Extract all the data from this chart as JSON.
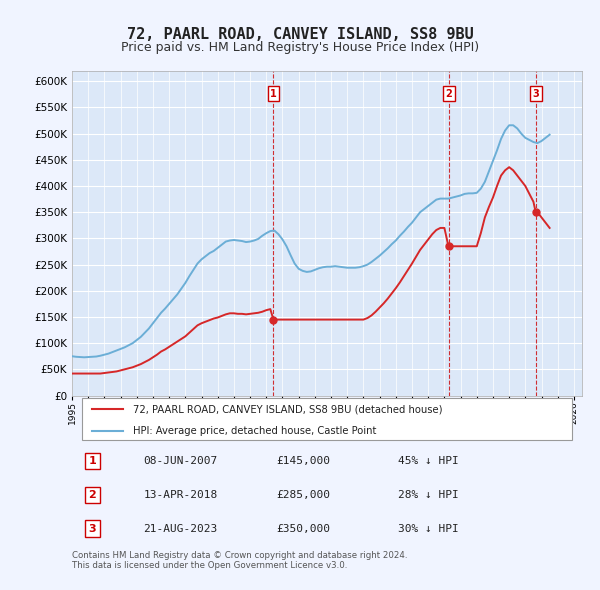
{
  "title": "72, PAARL ROAD, CANVEY ISLAND, SS8 9BU",
  "subtitle": "Price paid vs. HM Land Registry's House Price Index (HPI)",
  "background_color": "#f0f4ff",
  "plot_bg_color": "#dce8f8",
  "ylabel_values": [
    0,
    50000,
    100000,
    150000,
    200000,
    250000,
    300000,
    350000,
    400000,
    450000,
    500000,
    550000,
    600000
  ],
  "ylim": [
    0,
    620000
  ],
  "xlim_start": 1995.0,
  "xlim_end": 2026.5,
  "hpi_color": "#6baed6",
  "price_color": "#d62728",
  "vline_color": "#cc0000",
  "sale_dates": [
    2007.44,
    2018.28,
    2023.64
  ],
  "sale_prices": [
    145000,
    285000,
    350000
  ],
  "sale_labels": [
    "1",
    "2",
    "3"
  ],
  "legend_line1": "72, PAARL ROAD, CANVEY ISLAND, SS8 9BU (detached house)",
  "legend_line2": "HPI: Average price, detached house, Castle Point",
  "table_rows": [
    [
      "1",
      "08-JUN-2007",
      "£145,000",
      "45% ↓ HPI"
    ],
    [
      "2",
      "13-APR-2018",
      "£285,000",
      "28% ↓ HPI"
    ],
    [
      "3",
      "21-AUG-2023",
      "£350,000",
      "30% ↓ HPI"
    ]
  ],
  "footnote": "Contains HM Land Registry data © Crown copyright and database right 2024.\nThis data is licensed under the Open Government Licence v3.0.",
  "hpi_data_x": [
    1995.0,
    1995.25,
    1995.5,
    1995.75,
    1996.0,
    1996.25,
    1996.5,
    1996.75,
    1997.0,
    1997.25,
    1997.5,
    1997.75,
    1998.0,
    1998.25,
    1998.5,
    1998.75,
    1999.0,
    1999.25,
    1999.5,
    1999.75,
    2000.0,
    2000.25,
    2000.5,
    2000.75,
    2001.0,
    2001.25,
    2001.5,
    2001.75,
    2002.0,
    2002.25,
    2002.5,
    2002.75,
    2003.0,
    2003.25,
    2003.5,
    2003.75,
    2004.0,
    2004.25,
    2004.5,
    2004.75,
    2005.0,
    2005.25,
    2005.5,
    2005.75,
    2006.0,
    2006.25,
    2006.5,
    2006.75,
    2007.0,
    2007.25,
    2007.5,
    2007.75,
    2008.0,
    2008.25,
    2008.5,
    2008.75,
    2009.0,
    2009.25,
    2009.5,
    2009.75,
    2010.0,
    2010.25,
    2010.5,
    2010.75,
    2011.0,
    2011.25,
    2011.5,
    2011.75,
    2012.0,
    2012.25,
    2012.5,
    2012.75,
    2013.0,
    2013.25,
    2013.5,
    2013.75,
    2014.0,
    2014.25,
    2014.5,
    2014.75,
    2015.0,
    2015.25,
    2015.5,
    2015.75,
    2016.0,
    2016.25,
    2016.5,
    2016.75,
    2017.0,
    2017.25,
    2017.5,
    2017.75,
    2018.0,
    2018.25,
    2018.5,
    2018.75,
    2019.0,
    2019.25,
    2019.5,
    2019.75,
    2020.0,
    2020.25,
    2020.5,
    2020.75,
    2021.0,
    2021.25,
    2021.5,
    2021.75,
    2022.0,
    2022.25,
    2022.5,
    2022.75,
    2023.0,
    2023.25,
    2023.5,
    2023.75,
    2024.0,
    2024.25,
    2024.5
  ],
  "hpi_data_y": [
    75000,
    74000,
    73500,
    73000,
    73500,
    74000,
    74500,
    76000,
    78000,
    80000,
    83000,
    86000,
    89000,
    92000,
    96000,
    100000,
    106000,
    112000,
    120000,
    128000,
    138000,
    148000,
    158000,
    166000,
    175000,
    184000,
    193000,
    204000,
    215000,
    228000,
    240000,
    252000,
    260000,
    266000,
    272000,
    276000,
    282000,
    288000,
    294000,
    296000,
    297000,
    296000,
    295000,
    293000,
    294000,
    296000,
    299000,
    305000,
    310000,
    314000,
    315000,
    308000,
    298000,
    285000,
    268000,
    252000,
    242000,
    238000,
    236000,
    237000,
    240000,
    243000,
    245000,
    246000,
    246000,
    247000,
    246000,
    245000,
    244000,
    244000,
    244000,
    245000,
    247000,
    250000,
    255000,
    261000,
    267000,
    274000,
    281000,
    289000,
    296000,
    305000,
    313000,
    322000,
    330000,
    340000,
    350000,
    356000,
    362000,
    368000,
    374000,
    376000,
    376000,
    376000,
    378000,
    380000,
    382000,
    385000,
    386000,
    386000,
    387000,
    395000,
    408000,
    428000,
    448000,
    468000,
    490000,
    506000,
    516000,
    516000,
    510000,
    500000,
    492000,
    488000,
    484000,
    482000,
    486000,
    492000,
    498000
  ],
  "price_data_x": [
    1995.0,
    1995.25,
    1995.5,
    1995.75,
    1996.0,
    1996.25,
    1996.5,
    1996.75,
    1997.0,
    1997.25,
    1997.5,
    1997.75,
    1998.0,
    1998.25,
    1998.5,
    1998.75,
    1999.0,
    1999.25,
    1999.5,
    1999.75,
    2000.0,
    2000.25,
    2000.5,
    2000.75,
    2001.0,
    2001.25,
    2001.5,
    2001.75,
    2002.0,
    2002.25,
    2002.5,
    2002.75,
    2003.0,
    2003.25,
    2003.5,
    2003.75,
    2004.0,
    2004.25,
    2004.5,
    2004.75,
    2005.0,
    2005.25,
    2005.5,
    2005.75,
    2006.0,
    2006.25,
    2006.5,
    2006.75,
    2007.0,
    2007.25,
    2007.44,
    2007.5,
    2007.75,
    2008.0,
    2008.25,
    2008.5,
    2008.75,
    2009.0,
    2009.25,
    2009.5,
    2009.75,
    2010.0,
    2010.25,
    2010.5,
    2010.75,
    2011.0,
    2011.25,
    2011.5,
    2011.75,
    2012.0,
    2012.25,
    2012.5,
    2012.75,
    2013.0,
    2013.25,
    2013.5,
    2013.75,
    2014.0,
    2014.25,
    2014.5,
    2014.75,
    2015.0,
    2015.25,
    2015.5,
    2015.75,
    2016.0,
    2016.25,
    2016.5,
    2016.75,
    2017.0,
    2017.25,
    2017.5,
    2017.75,
    2018.0,
    2018.25,
    2018.28,
    2018.5,
    2018.75,
    2019.0,
    2019.25,
    2019.5,
    2019.75,
    2020.0,
    2020.25,
    2020.5,
    2020.75,
    2021.0,
    2021.25,
    2021.5,
    2021.75,
    2022.0,
    2022.25,
    2022.5,
    2022.75,
    2023.0,
    2023.25,
    2023.5,
    2023.64,
    2023.75,
    2024.0,
    2024.25,
    2024.5
  ],
  "price_data_y": [
    42000,
    42000,
    42000,
    42000,
    42000,
    42000,
    42000,
    42000,
    43000,
    44000,
    45000,
    46000,
    48000,
    50000,
    52000,
    54000,
    57000,
    60000,
    64000,
    68000,
    73000,
    78000,
    84000,
    88000,
    93000,
    98000,
    103000,
    108000,
    113000,
    120000,
    127000,
    134000,
    138000,
    141000,
    144000,
    147000,
    149000,
    152000,
    155000,
    157000,
    157000,
    156000,
    156000,
    155000,
    156000,
    157000,
    158000,
    160000,
    163000,
    165000,
    145000,
    145000,
    145000,
    145000,
    145000,
    145000,
    145000,
    145000,
    145000,
    145000,
    145000,
    145000,
    145000,
    145000,
    145000,
    145000,
    145000,
    145000,
    145000,
    145000,
    145000,
    145000,
    145000,
    145000,
    148000,
    153000,
    160000,
    168000,
    176000,
    185000,
    195000,
    205000,
    216000,
    228000,
    240000,
    252000,
    265000,
    278000,
    288000,
    298000,
    308000,
    316000,
    320000,
    320000,
    285000,
    285000,
    285000,
    285000,
    285000,
    285000,
    285000,
    285000,
    285000,
    310000,
    340000,
    360000,
    378000,
    400000,
    420000,
    430000,
    436000,
    430000,
    420000,
    410000,
    400000,
    385000,
    370000,
    350000,
    350000,
    340000,
    330000,
    320000
  ]
}
